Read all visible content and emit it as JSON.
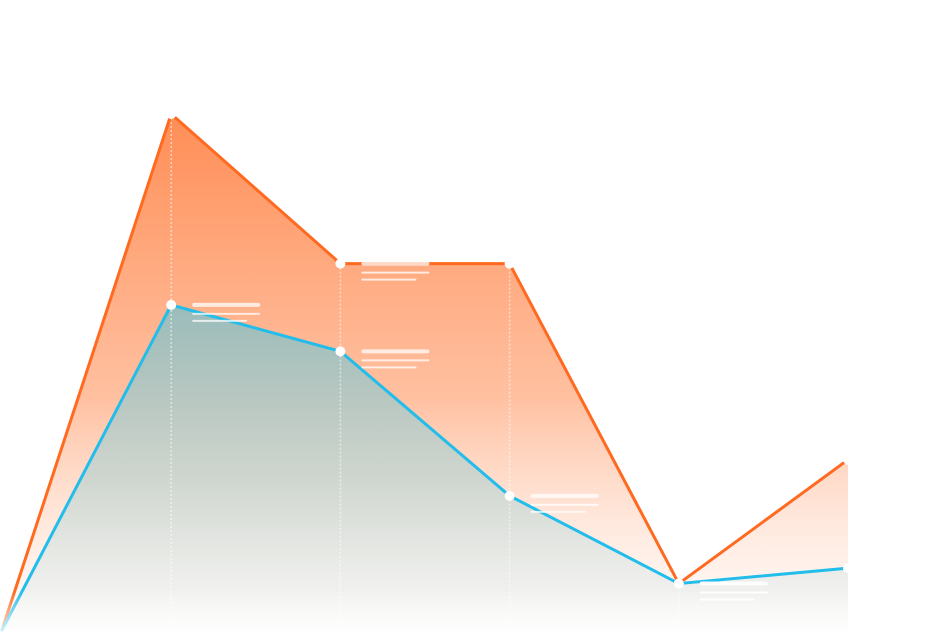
{
  "chart_data": {
    "type": "area",
    "x": [
      0,
      1,
      2,
      3,
      4,
      5
    ],
    "series": [
      {
        "values": [
          0,
          100,
          71,
          71,
          9,
          33
        ],
        "color": "#FF6A20"
      },
      {
        "values": [
          0,
          63,
          54,
          26,
          9,
          12
        ],
        "color": "#22BDEB"
      }
    ],
    "ylim": [
      0,
      105
    ],
    "grid": false,
    "legend": "none",
    "axes_visible": false
  }
}
